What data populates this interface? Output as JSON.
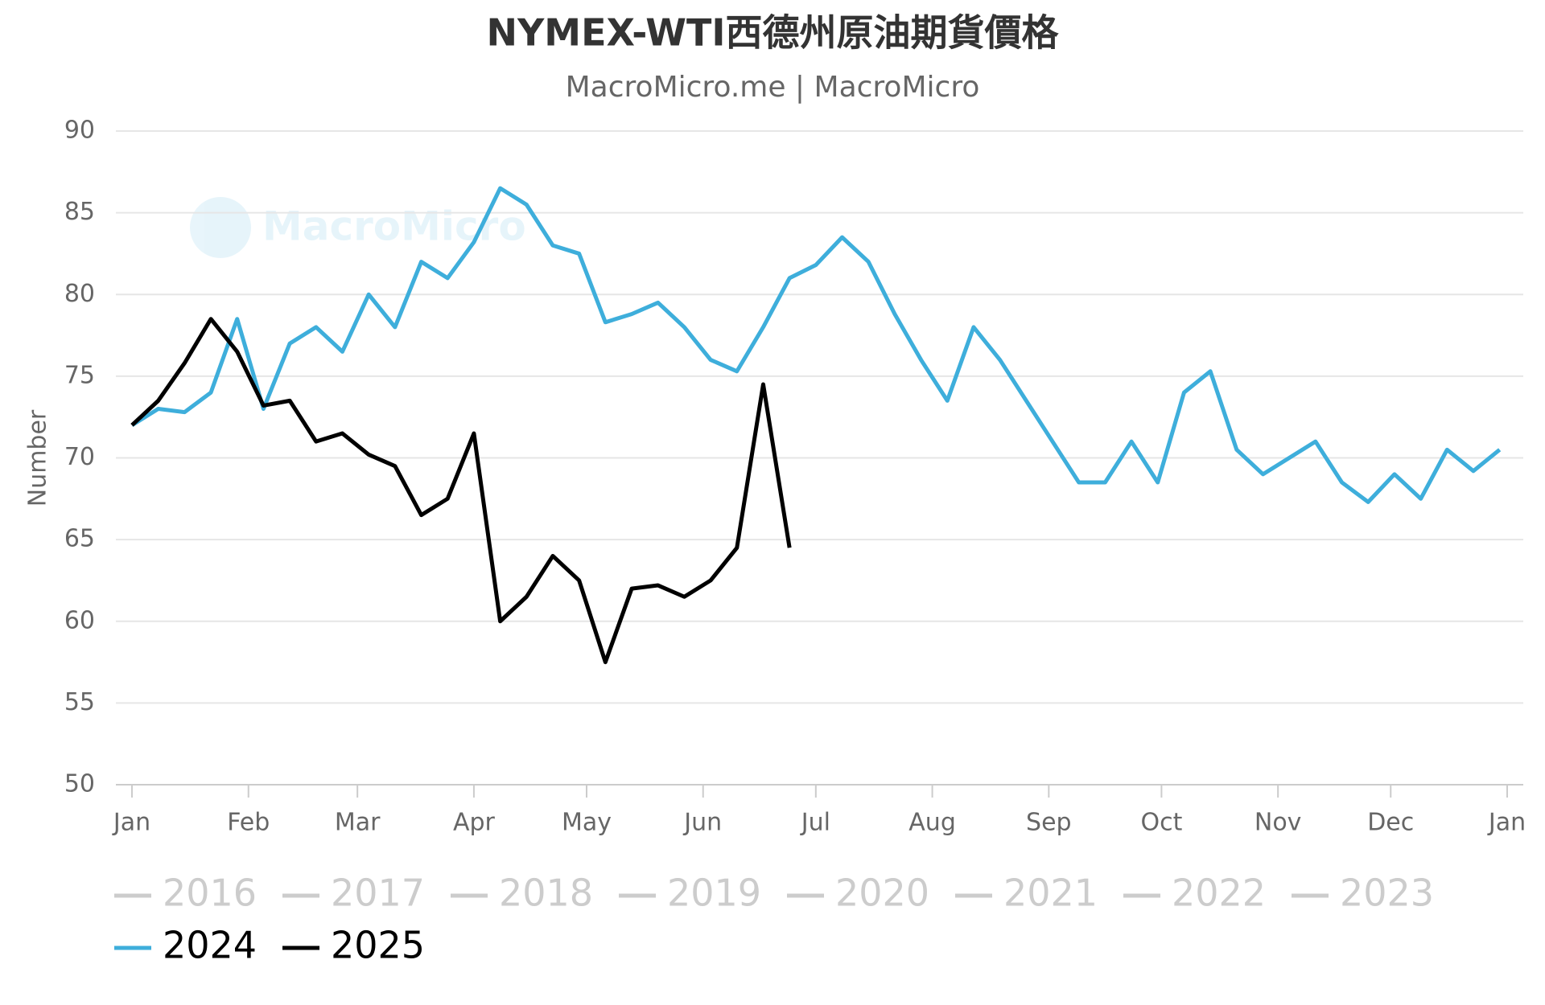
{
  "chart_data": {
    "type": "line",
    "title": "NYMEX-WTI西德州原油期貨價格",
    "subtitle": "MacroMicro.me | MacroMicro",
    "watermark": "MacroMicro",
    "ylabel": "Number",
    "xlim": [
      0,
      366
    ],
    "xticks": [
      {
        "value": 0,
        "label": "Jan"
      },
      {
        "value": 31,
        "label": "Feb"
      },
      {
        "value": 60,
        "label": "Mar"
      },
      {
        "value": 91,
        "label": "Apr"
      },
      {
        "value": 121,
        "label": "May"
      },
      {
        "value": 152,
        "label": "Jun"
      },
      {
        "value": 182,
        "label": "Jul"
      },
      {
        "value": 213,
        "label": "Aug"
      },
      {
        "value": 244,
        "label": "Sep"
      },
      {
        "value": 274,
        "label": "Oct"
      },
      {
        "value": 305,
        "label": "Nov"
      },
      {
        "value": 335,
        "label": "Dec"
      },
      {
        "value": 366,
        "label": "Jan"
      }
    ],
    "ylim": [
      50,
      90
    ],
    "yticks": [
      50,
      55,
      60,
      65,
      70,
      75,
      80,
      85,
      90
    ],
    "grid": true,
    "x": [
      0,
      7,
      14,
      21,
      28,
      35,
      42,
      49,
      56,
      63,
      70,
      77,
      84,
      91,
      98,
      105,
      112,
      119,
      126,
      133,
      140,
      147,
      154,
      161,
      168,
      175,
      182,
      189,
      196,
      203,
      210,
      217,
      224,
      231,
      238,
      245,
      252,
      259,
      266,
      273,
      280,
      287,
      294,
      301,
      308,
      315,
      322,
      329,
      336,
      343,
      350,
      357,
      364
    ],
    "series": [
      {
        "name": "2016",
        "color": "#cccccc",
        "visible": false
      },
      {
        "name": "2017",
        "color": "#cccccc",
        "visible": false
      },
      {
        "name": "2018",
        "color": "#cccccc",
        "visible": false
      },
      {
        "name": "2019",
        "color": "#cccccc",
        "visible": false
      },
      {
        "name": "2020",
        "color": "#cccccc",
        "visible": false
      },
      {
        "name": "2021",
        "color": "#cccccc",
        "visible": false
      },
      {
        "name": "2022",
        "color": "#cccccc",
        "visible": false
      },
      {
        "name": "2023",
        "color": "#cccccc",
        "visible": false
      },
      {
        "name": "2024",
        "color": "#3eaedb",
        "visible": true,
        "values": [
          72,
          73,
          72.8,
          74,
          78.5,
          73,
          77,
          78,
          76.5,
          80,
          78,
          82,
          81,
          83.2,
          86.5,
          85.5,
          83,
          82.5,
          78.3,
          78.8,
          79.5,
          78,
          76,
          75.3,
          78,
          81,
          81.8,
          83.5,
          82,
          78.8,
          76,
          73.5,
          78,
          76,
          73.5,
          71,
          68.5,
          68.5,
          71,
          68.5,
          74,
          75.3,
          70.5,
          69,
          70,
          71,
          68.5,
          67.3,
          69,
          67.5,
          70.5,
          69.2,
          70.5
        ]
      },
      {
        "name": "2025",
        "color": "#000000",
        "visible": true,
        "values": [
          72,
          73.5,
          75.8,
          78.5,
          76.5,
          73.2,
          73.5,
          71,
          71.5,
          70.2,
          69.5,
          66.5,
          67.5,
          71.5,
          60,
          61.5,
          64,
          62.5,
          57.5,
          62,
          62.2,
          61.5,
          62.5,
          64.5,
          74.5,
          64.5,
          null,
          null,
          null,
          null,
          null,
          null,
          null,
          null,
          null,
          null,
          null,
          null,
          null,
          null,
          null,
          null,
          null,
          null,
          null,
          null,
          null,
          null,
          null,
          null,
          null,
          null,
          null
        ]
      }
    ]
  }
}
